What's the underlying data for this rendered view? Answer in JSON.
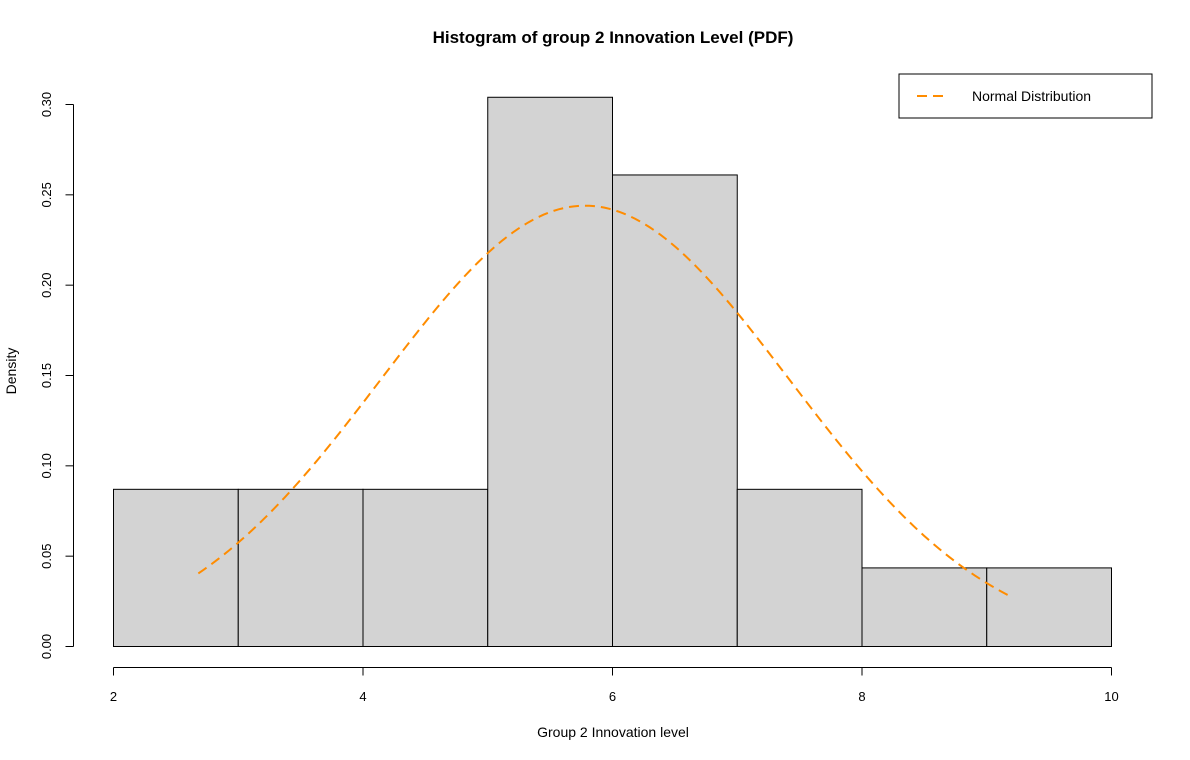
{
  "chart_data": {
    "type": "bar",
    "title": "Histogram of group 2 Innovation Level (PDF)",
    "xlabel": "Group 2 Innovation level",
    "ylabel": "Density",
    "xlim": [
      2,
      10
    ],
    "ylim": [
      0,
      0.3
    ],
    "x_ticks": [
      2,
      4,
      6,
      8,
      10
    ],
    "y_ticks": [
      0.0,
      0.05,
      0.1,
      0.15,
      0.2,
      0.25,
      0.3
    ],
    "y_tick_labels": [
      "0.00",
      "0.05",
      "0.10",
      "0.15",
      "0.20",
      "0.25",
      "0.30"
    ],
    "bins": [
      {
        "from": 2,
        "to": 3,
        "density": 0.087
      },
      {
        "from": 3,
        "to": 4,
        "density": 0.087
      },
      {
        "from": 4,
        "to": 5,
        "density": 0.087
      },
      {
        "from": 5,
        "to": 6,
        "density": 0.304
      },
      {
        "from": 6,
        "to": 7,
        "density": 0.261
      },
      {
        "from": 7,
        "to": 8,
        "density": 0.087
      },
      {
        "from": 8,
        "to": 9,
        "density": 0.0435
      },
      {
        "from": 9,
        "to": 10,
        "density": 0.0435
      }
    ],
    "bar_fill": "#d3d3d3",
    "bar_stroke": "#000000",
    "normal_curve": {
      "name": "Normal Distribution",
      "mean": 5.78,
      "sd": 1.635,
      "x_range": [
        2.68,
        9.19
      ],
      "color": "#ff8c00",
      "style": "dashed"
    },
    "legend": {
      "position": "top-right",
      "entries": [
        "Normal Distribution"
      ]
    },
    "grid": false
  }
}
